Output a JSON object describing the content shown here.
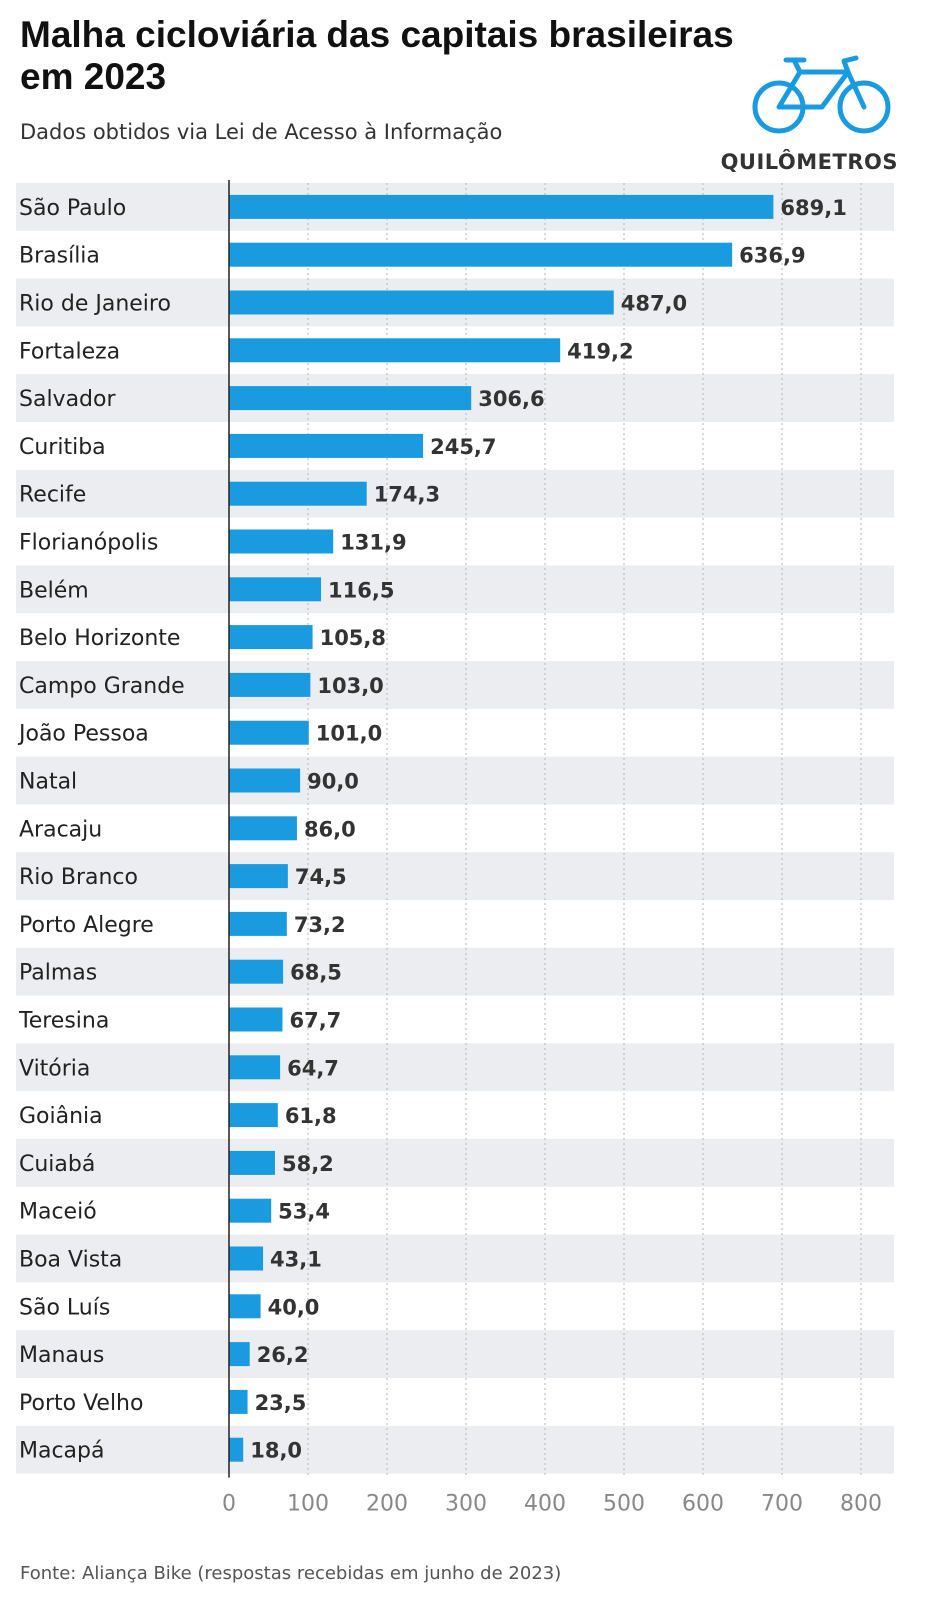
{
  "header": {
    "title": "Malha cicloviária das capitais brasileiras em 2023",
    "subtitle": "Dados obtidos via Lei de Acesso à Informação",
    "unit": "QUILÔMETROS"
  },
  "icons": {
    "bike": "bicycle-icon"
  },
  "colors": {
    "bar": "#1a9be0",
    "row_band": "#ebedf0",
    "axis": "#222222",
    "grid": "#b5b5b5",
    "bike": "#1a9be0"
  },
  "source": "Fonte: Aliança Bike (respostas recebidas em junho de 2023)",
  "chart_data": {
    "type": "bar",
    "orientation": "horizontal",
    "title": "Malha cicloviária das capitais brasileiras em 2023",
    "subtitle": "Dados obtidos via Lei de Acesso à Informação",
    "unit": "QUILÔMETROS",
    "categories": [
      "São Paulo",
      "Brasília",
      "Rio de Janeiro",
      "Fortaleza",
      "Salvador",
      "Curitiba",
      "Recife",
      "Florianópolis",
      "Belém",
      "Belo Horizonte",
      "Campo Grande",
      "João Pessoa",
      "Natal",
      "Aracaju",
      "Rio Branco",
      "Porto Alegre",
      "Palmas",
      "Teresina",
      "Vitória",
      "Goiânia",
      "Cuiabá",
      "Maceió",
      "Boa Vista",
      "São Luís",
      "Manaus",
      "Porto Velho",
      "Macapá"
    ],
    "values": [
      689.1,
      636.9,
      487.0,
      419.2,
      306.6,
      245.7,
      174.3,
      131.9,
      116.5,
      105.8,
      103.0,
      101.0,
      90.0,
      86.0,
      74.5,
      73.2,
      68.5,
      67.7,
      64.7,
      61.8,
      58.2,
      53.4,
      43.1,
      40.0,
      26.2,
      23.5,
      18.0
    ],
    "value_labels": [
      "689,1",
      "636,9",
      "487,0",
      "419,2",
      "306,6",
      "245,7",
      "174,3",
      "131,9",
      "116,5",
      "105,8",
      "103,0",
      "101,0",
      "90,0",
      "86,0",
      "74,5",
      "73,2",
      "68,5",
      "67,7",
      "64,7",
      "61,8",
      "58,2",
      "53,4",
      "43,1",
      "40,0",
      "26,2",
      "23,5",
      "18,0"
    ],
    "xlim": [
      0,
      800
    ],
    "xticks": [
      "0",
      "100",
      "200",
      "300",
      "400",
      "500",
      "600",
      "700",
      "800"
    ],
    "grid": true,
    "legend": "none"
  }
}
